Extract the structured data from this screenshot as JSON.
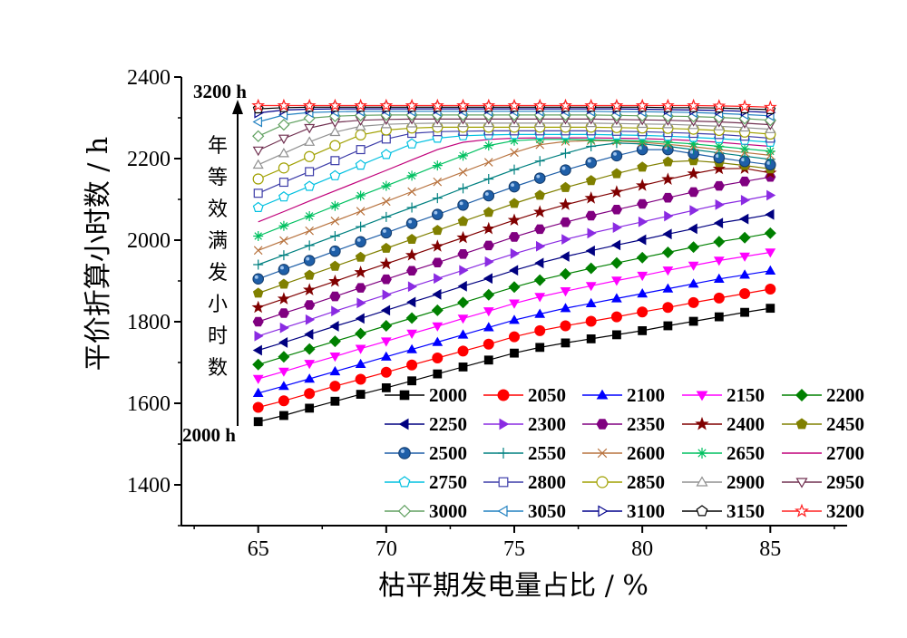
{
  "chart_data": {
    "type": "line",
    "title": "",
    "xlabel": "枯平期发电量占比 / %",
    "ylabel": "平价折算小时数 / h",
    "xlim": [
      62,
      88
    ],
    "ylim": [
      1300,
      2400
    ],
    "xticks": [
      65,
      70,
      75,
      80,
      85
    ],
    "yticks": [
      1400,
      1600,
      1800,
      2000,
      2200,
      2400
    ],
    "x": [
      65,
      66,
      67,
      68,
      69,
      70,
      71,
      72,
      73,
      74,
      75,
      76,
      77,
      78,
      79,
      80,
      81,
      82,
      83,
      84,
      85
    ],
    "grid": false,
    "legend_position": "bottom-right, 5 columns",
    "annotation": {
      "top_label": "3200 h",
      "bottom_label": "2000 h",
      "arrow_text": "年等效满发小时数"
    },
    "series": [
      {
        "name": "2000",
        "color": "#000000",
        "marker": "square",
        "values": [
          1555,
          1570,
          1588,
          1605,
          1622,
          1638,
          1655,
          1672,
          1689,
          1706,
          1723,
          1737,
          1748,
          1758,
          1768,
          1778,
          1790,
          1801,
          1812,
          1823,
          1833
        ]
      },
      {
        "name": "2050",
        "color": "#ff0000",
        "marker": "circle",
        "values": [
          1590,
          1606,
          1624,
          1642,
          1659,
          1676,
          1694,
          1711,
          1728,
          1745,
          1763,
          1778,
          1790,
          1801,
          1812,
          1824,
          1835,
          1847,
          1858,
          1869,
          1880
        ]
      },
      {
        "name": "2100",
        "color": "#0000ff",
        "marker": "triangle-up",
        "values": [
          1625,
          1642,
          1660,
          1678,
          1696,
          1714,
          1732,
          1750,
          1768,
          1786,
          1804,
          1819,
          1833,
          1845,
          1857,
          1869,
          1881,
          1893,
          1905,
          1915,
          1925
        ]
      },
      {
        "name": "2150",
        "color": "#ff00ff",
        "marker": "triangle-down",
        "values": [
          1660,
          1678,
          1697,
          1715,
          1734,
          1752,
          1771,
          1789,
          1808,
          1826,
          1845,
          1861,
          1875,
          1888,
          1901,
          1913,
          1926,
          1938,
          1950,
          1960,
          1970
        ]
      },
      {
        "name": "2200",
        "color": "#008000",
        "marker": "diamond",
        "values": [
          1695,
          1714,
          1733,
          1752,
          1771,
          1790,
          1809,
          1828,
          1847,
          1866,
          1885,
          1902,
          1917,
          1931,
          1944,
          1957,
          1970,
          1983,
          1996,
          2006,
          2017
        ]
      },
      {
        "name": "2250",
        "color": "#000080",
        "marker": "triangle-left",
        "values": [
          1730,
          1749,
          1769,
          1789,
          1808,
          1828,
          1848,
          1867,
          1887,
          1906,
          1926,
          1944,
          1960,
          1974,
          1988,
          2001,
          2015,
          2028,
          2042,
          2052,
          2063
        ]
      },
      {
        "name": "2300",
        "color": "#8a2be2",
        "marker": "triangle-right",
        "values": [
          1765,
          1785,
          1805,
          1826,
          1846,
          1866,
          1886,
          1906,
          1926,
          1947,
          1967,
          1985,
          2002,
          2017,
          2031,
          2045,
          2059,
          2073,
          2087,
          2098,
          2110
        ]
      },
      {
        "name": "2350",
        "color": "#800080",
        "marker": "hexagon",
        "values": [
          1800,
          1821,
          1841,
          1862,
          1883,
          1904,
          1925,
          1945,
          1966,
          1987,
          2008,
          2027,
          2044,
          2060,
          2075,
          2089,
          2104,
          2118,
          2133,
          2144,
          2155
        ]
      },
      {
        "name": "2400",
        "color": "#800000",
        "marker": "star",
        "values": [
          1835,
          1856,
          1878,
          1899,
          1921,
          1942,
          1963,
          1985,
          2006,
          2028,
          2049,
          2069,
          2087,
          2103,
          2118,
          2134,
          2149,
          2163,
          2175,
          2176,
          2165
        ]
      },
      {
        "name": "2450",
        "color": "#808000",
        "marker": "pentagon",
        "values": [
          1870,
          1892,
          1914,
          1936,
          1958,
          1980,
          2002,
          2024,
          2046,
          2068,
          2090,
          2110,
          2129,
          2146,
          2163,
          2179,
          2192,
          2195,
          2190,
          2183,
          2175
        ]
      },
      {
        "name": "2500",
        "color": "#1f5fa8",
        "marker": "sphere",
        "values": [
          1905,
          1928,
          1950,
          1973,
          1996,
          2018,
          2041,
          2063,
          2086,
          2109,
          2131,
          2152,
          2172,
          2190,
          2207,
          2222,
          2222,
          2212,
          2202,
          2193,
          2185
        ]
      },
      {
        "name": "2550",
        "color": "#008080",
        "marker": "plus",
        "values": [
          1940,
          1963,
          1987,
          2010,
          2033,
          2057,
          2080,
          2103,
          2127,
          2150,
          2173,
          2194,
          2213,
          2230,
          2238,
          2236,
          2230,
          2222,
          2214,
          2206,
          2198
        ]
      },
      {
        "name": "2600",
        "color": "#b8733f",
        "marker": "x",
        "values": [
          1975,
          1999,
          2023,
          2047,
          2071,
          2095,
          2119,
          2143,
          2167,
          2191,
          2215,
          2234,
          2242,
          2244,
          2243,
          2240,
          2235,
          2229,
          2222,
          2215,
          2208
        ]
      },
      {
        "name": "2650",
        "color": "#00c060",
        "marker": "asterisk",
        "values": [
          2010,
          2035,
          2059,
          2084,
          2109,
          2133,
          2158,
          2183,
          2207,
          2232,
          2244,
          2247,
          2247,
          2246,
          2245,
          2243,
          2240,
          2236,
          2230,
          2224,
          2218
        ]
      },
      {
        "name": "2700",
        "color": "#c0007a",
        "marker": "none",
        "values": [
          2045,
          2070,
          2096,
          2121,
          2146,
          2171,
          2197,
          2222,
          2240,
          2247,
          2250,
          2251,
          2251,
          2251,
          2250,
          2249,
          2247,
          2244,
          2240,
          2235,
          2230
        ]
      },
      {
        "name": "2750",
        "color": "#00c0e0",
        "marker": "pentagon-open",
        "values": [
          2080,
          2106,
          2132,
          2158,
          2184,
          2210,
          2236,
          2250,
          2256,
          2258,
          2259,
          2259,
          2259,
          2259,
          2258,
          2257,
          2255,
          2252,
          2249,
          2245,
          2240
        ]
      },
      {
        "name": "2800",
        "color": "#3c3ca8",
        "marker": "square-open",
        "values": [
          2115,
          2142,
          2168,
          2195,
          2222,
          2248,
          2262,
          2266,
          2267,
          2268,
          2268,
          2268,
          2268,
          2268,
          2267,
          2266,
          2264,
          2262,
          2259,
          2255,
          2250
        ]
      },
      {
        "name": "2850",
        "color": "#a0a000",
        "marker": "circle-open",
        "values": [
          2150,
          2177,
          2205,
          2232,
          2258,
          2270,
          2275,
          2277,
          2277,
          2277,
          2277,
          2277,
          2277,
          2277,
          2276,
          2275,
          2274,
          2272,
          2269,
          2265,
          2260
        ]
      },
      {
        "name": "2900",
        "color": "#909090",
        "marker": "triangle-up-open",
        "values": [
          2185,
          2213,
          2241,
          2265,
          2279,
          2284,
          2286,
          2287,
          2287,
          2287,
          2287,
          2287,
          2287,
          2287,
          2286,
          2285,
          2284,
          2282,
          2279,
          2276,
          2272
        ]
      },
      {
        "name": "2950",
        "color": "#703050",
        "marker": "triangle-down-open",
        "values": [
          2220,
          2249,
          2275,
          2289,
          2294,
          2296,
          2297,
          2297,
          2297,
          2297,
          2297,
          2297,
          2297,
          2297,
          2296,
          2295,
          2294,
          2292,
          2290,
          2287,
          2283
        ]
      },
      {
        "name": "3000",
        "color": "#60a060",
        "marker": "diamond-open",
        "values": [
          2255,
          2283,
          2299,
          2304,
          2306,
          2307,
          2307,
          2307,
          2307,
          2307,
          2307,
          2307,
          2307,
          2307,
          2306,
          2305,
          2304,
          2303,
          2301,
          2298,
          2294
        ]
      },
      {
        "name": "3050",
        "color": "#2080c0",
        "marker": "triangle-left-open",
        "values": [
          2290,
          2307,
          2313,
          2315,
          2316,
          2316,
          2316,
          2316,
          2316,
          2316,
          2316,
          2316,
          2316,
          2316,
          2315,
          2315,
          2314,
          2313,
          2311,
          2308,
          2305
        ]
      },
      {
        "name": "3100",
        "color": "#00008b",
        "marker": "triangle-right-open",
        "values": [
          2312,
          2319,
          2321,
          2322,
          2322,
          2322,
          2322,
          2322,
          2322,
          2322,
          2322,
          2322,
          2322,
          2322,
          2322,
          2321,
          2320,
          2319,
          2318,
          2316,
          2313
        ]
      },
      {
        "name": "3150",
        "color": "#000000",
        "marker": "pentagon-open",
        "values": [
          2322,
          2325,
          2326,
          2326,
          2326,
          2326,
          2326,
          2326,
          2326,
          2326,
          2326,
          2326,
          2326,
          2326,
          2326,
          2326,
          2325,
          2325,
          2324,
          2322,
          2320
        ]
      },
      {
        "name": "3200",
        "color": "#ff2020",
        "marker": "star-open",
        "values": [
          2330,
          2330,
          2330,
          2330,
          2330,
          2330,
          2330,
          2330,
          2330,
          2330,
          2330,
          2330,
          2330,
          2330,
          2330,
          2330,
          2330,
          2330,
          2329,
          2328,
          2326
        ]
      }
    ]
  }
}
